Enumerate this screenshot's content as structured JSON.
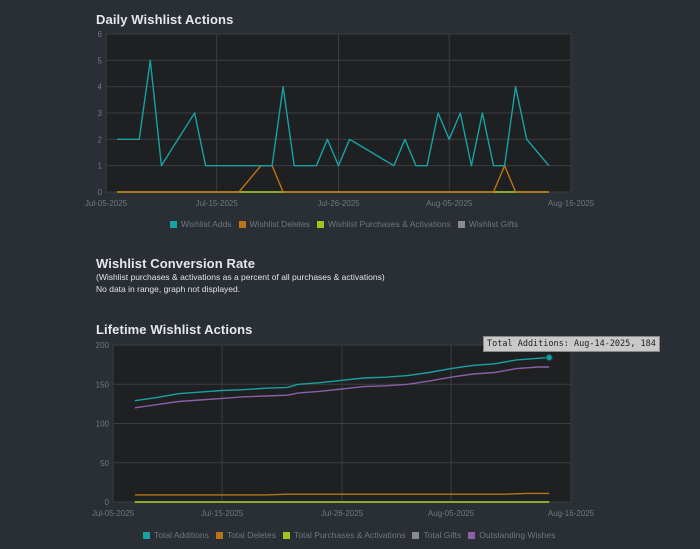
{
  "sections": {
    "daily_title": "Daily Wishlist Actions",
    "conversion_title": "Wishlist Conversion Rate",
    "conversion_note": "(Wishlist purchases & activations as a percent of all purchases & activations)",
    "conversion_nodata": "No data in range, graph not displayed.",
    "lifetime_title": "Lifetime Wishlist Actions"
  },
  "tooltip": {
    "text": "Total Additions: Aug-14-2025, 184"
  },
  "chart_data": [
    {
      "type": "line",
      "title": "Daily Wishlist Actions",
      "x_start": "2025-07-05",
      "x_end": "2025-08-16",
      "x_ticks": [
        {
          "label": "Jul-05-2025",
          "day": 0
        },
        {
          "label": "Jul-15-2025",
          "day": 10
        },
        {
          "label": "Jul-26-2025",
          "day": 21
        },
        {
          "label": "Aug-05-2025",
          "day": 31
        },
        {
          "label": "Aug-16-2025",
          "day": 42
        }
      ],
      "ylim": [
        0,
        6
      ],
      "y_ticks": [
        0,
        1,
        2,
        3,
        4,
        5,
        6
      ],
      "series": [
        {
          "name": "Wishlist Adds",
          "color": "#17a2a2",
          "points": [
            [
              1,
              2
            ],
            [
              2,
              2
            ],
            [
              3,
              2
            ],
            [
              4,
              5
            ],
            [
              5,
              1
            ],
            [
              6,
              1.67
            ],
            [
              7,
              2.33
            ],
            [
              8,
              3
            ],
            [
              9,
              1
            ],
            [
              10,
              1
            ],
            [
              11,
              1
            ],
            [
              12,
              1
            ],
            [
              13,
              1
            ],
            [
              14,
              1
            ],
            [
              15,
              1
            ],
            [
              16,
              4
            ],
            [
              17,
              1
            ],
            [
              18,
              1
            ],
            [
              19,
              1
            ],
            [
              20,
              2
            ],
            [
              21,
              1
            ],
            [
              22,
              2
            ],
            [
              23,
              1.75
            ],
            [
              24,
              1.5
            ],
            [
              25,
              1.25
            ],
            [
              26,
              1
            ],
            [
              27,
              2
            ],
            [
              28,
              1
            ],
            [
              29,
              1
            ],
            [
              30,
              3
            ],
            [
              31,
              2
            ],
            [
              32,
              3
            ],
            [
              33,
              1
            ],
            [
              34,
              3
            ],
            [
              35,
              1
            ],
            [
              36,
              1
            ],
            [
              37,
              4
            ],
            [
              38,
              2
            ],
            [
              39,
              1.5
            ],
            [
              40,
              1
            ]
          ]
        },
        {
          "name": "Wishlist Deletes",
          "color": "#b87514",
          "points": [
            [
              1,
              0
            ],
            [
              12,
              0
            ],
            [
              14,
              1
            ],
            [
              15,
              1
            ],
            [
              16,
              0
            ],
            [
              35,
              0
            ],
            [
              36,
              1
            ],
            [
              37,
              0
            ],
            [
              40,
              0
            ]
          ]
        },
        {
          "name": "Wishlist Purchases & Activations",
          "color": "#a4c41a",
          "points": [
            [
              1,
              0
            ],
            [
              40,
              0
            ]
          ]
        },
        {
          "name": "Wishlist Gifts",
          "color": "#8a8a8a",
          "points": [
            [
              1,
              0
            ],
            [
              40,
              0
            ]
          ]
        }
      ]
    },
    {
      "type": "line",
      "title": "Lifetime Wishlist Actions",
      "x_start": "2025-07-05",
      "x_end": "2025-08-16",
      "x_ticks": [
        {
          "label": "Jul-05-2025",
          "day": 0
        },
        {
          "label": "Jul-15-2025",
          "day": 10
        },
        {
          "label": "Jul-26-2025",
          "day": 21
        },
        {
          "label": "Aug-05-2025",
          "day": 31
        },
        {
          "label": "Aug-16-2025",
          "day": 42
        }
      ],
      "ylim": [
        0,
        200
      ],
      "y_ticks": [
        0,
        50,
        100,
        150,
        200
      ],
      "series": [
        {
          "name": "Total Additions",
          "color": "#17a2a2",
          "points": [
            [
              2,
              129
            ],
            [
              4,
              133
            ],
            [
              6,
              138
            ],
            [
              8,
              140
            ],
            [
              10,
              142
            ],
            [
              12,
              143
            ],
            [
              14,
              145
            ],
            [
              16,
              146
            ],
            [
              17,
              150
            ],
            [
              19,
              152
            ],
            [
              21,
              155
            ],
            [
              23,
              158
            ],
            [
              25,
              159
            ],
            [
              27,
              161
            ],
            [
              29,
              165
            ],
            [
              31,
              170
            ],
            [
              33,
              174
            ],
            [
              35,
              176
            ],
            [
              37,
              181
            ],
            [
              39,
              183
            ],
            [
              40,
              184
            ]
          ]
        },
        {
          "name": "Total Deletes",
          "color": "#b87514",
          "points": [
            [
              2,
              9
            ],
            [
              14,
              9
            ],
            [
              16,
              10
            ],
            [
              36,
              10
            ],
            [
              38,
              11
            ],
            [
              40,
              11
            ]
          ]
        },
        {
          "name": "Total Purchases & Activations",
          "color": "#a4c41a",
          "points": [
            [
              2,
              0
            ],
            [
              40,
              0
            ]
          ]
        },
        {
          "name": "Total Gifts",
          "color": "#8a8a8a",
          "points": [
            [
              2,
              0
            ],
            [
              40,
              0
            ]
          ]
        },
        {
          "name": "Outstanding Wishes",
          "color": "#8a5fa8",
          "points": [
            [
              2,
              120
            ],
            [
              4,
              124
            ],
            [
              6,
              128
            ],
            [
              8,
              130
            ],
            [
              10,
              132
            ],
            [
              12,
              134
            ],
            [
              14,
              135
            ],
            [
              16,
              136
            ],
            [
              17,
              139
            ],
            [
              19,
              141
            ],
            [
              21,
              144
            ],
            [
              23,
              147
            ],
            [
              25,
              148
            ],
            [
              27,
              150
            ],
            [
              29,
              154
            ],
            [
              31,
              159
            ],
            [
              33,
              163
            ],
            [
              35,
              165
            ],
            [
              37,
              170
            ],
            [
              39,
              172
            ],
            [
              40,
              172
            ]
          ]
        }
      ],
      "highlight": {
        "series": "Total Additions",
        "date": "Aug-14-2025",
        "value": 184
      }
    }
  ]
}
